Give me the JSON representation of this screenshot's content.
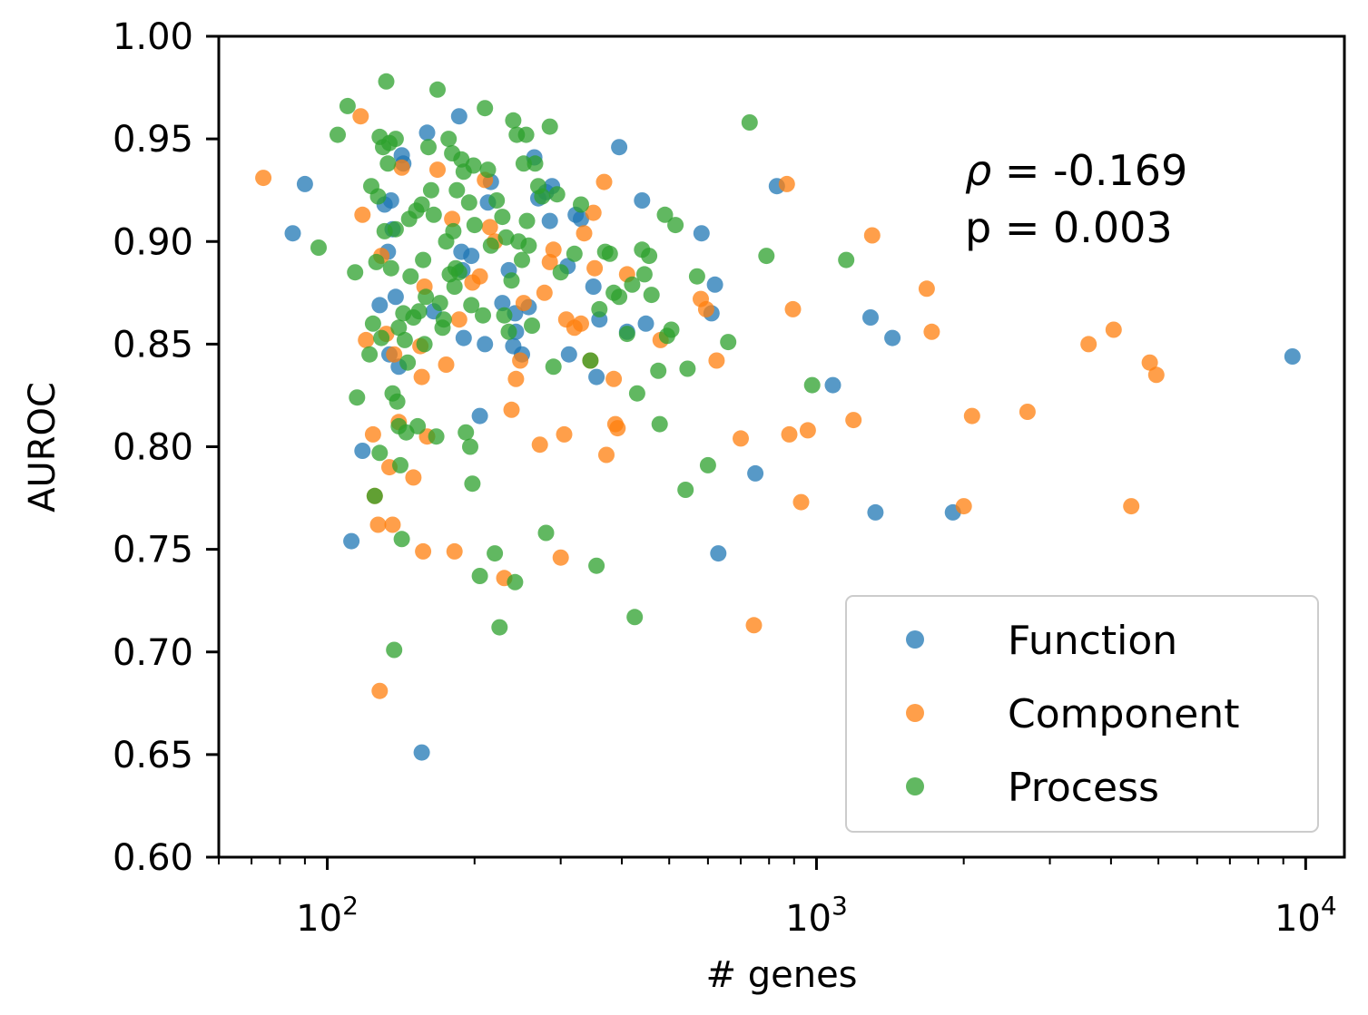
{
  "chart_data": {
    "type": "scatter",
    "xlabel": "# genes",
    "ylabel": "AUROC",
    "xscale": "log",
    "xlim": [
      60,
      12000
    ],
    "ylim": [
      0.6,
      1.0
    ],
    "yticks": [
      "0.60",
      "0.65",
      "0.70",
      "0.75",
      "0.80",
      "0.85",
      "0.90",
      "0.95",
      "1.00"
    ],
    "xticks": [
      {
        "value": 100,
        "base": "10",
        "exp": "2"
      },
      {
        "value": 1000,
        "base": "10",
        "exp": "3"
      },
      {
        "value": 10000,
        "base": "10",
        "exp": "4"
      }
    ],
    "annotation": {
      "rho_symbol": "ρ",
      "rho_text": " = -0.169",
      "p_text": "p = 0.003"
    },
    "legend_position": "lower-right",
    "series": [
      {
        "name": "Function",
        "color": "#1f77b4",
        "points": [
          [
            85,
            0.904
          ],
          [
            90,
            0.928
          ],
          [
            112,
            0.754
          ],
          [
            118,
            0.798
          ],
          [
            128,
            0.869
          ],
          [
            131,
            0.918
          ],
          [
            133,
            0.895
          ],
          [
            134,
            0.845
          ],
          [
            135,
            0.92
          ],
          [
            136,
            0.906
          ],
          [
            138,
            0.873
          ],
          [
            140,
            0.839
          ],
          [
            142,
            0.942
          ],
          [
            143,
            0.938
          ],
          [
            156,
            0.651
          ],
          [
            160,
            0.953
          ],
          [
            165,
            0.866
          ],
          [
            186,
            0.961
          ],
          [
            188,
            0.895
          ],
          [
            189,
            0.886
          ],
          [
            190,
            0.853
          ],
          [
            197,
            0.893
          ],
          [
            205,
            0.815
          ],
          [
            210,
            0.85
          ],
          [
            213,
            0.919
          ],
          [
            216,
            0.929
          ],
          [
            228,
            0.87
          ],
          [
            235,
            0.886
          ],
          [
            240,
            0.849
          ],
          [
            242,
            0.865
          ],
          [
            243,
            0.856
          ],
          [
            250,
            0.845
          ],
          [
            258,
            0.868
          ],
          [
            265,
            0.941
          ],
          [
            270,
            0.921
          ],
          [
            280,
            0.924
          ],
          [
            285,
            0.91
          ],
          [
            288,
            0.927
          ],
          [
            310,
            0.888
          ],
          [
            312,
            0.845
          ],
          [
            322,
            0.913
          ],
          [
            330,
            0.911
          ],
          [
            350,
            0.878
          ],
          [
            355,
            0.834
          ],
          [
            360,
            0.862
          ],
          [
            395,
            0.946
          ],
          [
            410,
            0.856
          ],
          [
            440,
            0.92
          ],
          [
            448,
            0.86
          ],
          [
            582,
            0.904
          ],
          [
            610,
            0.865
          ],
          [
            620,
            0.879
          ],
          [
            630,
            0.748
          ],
          [
            750,
            0.787
          ],
          [
            830,
            0.927
          ],
          [
            1080,
            0.83
          ],
          [
            1290,
            0.863
          ],
          [
            1320,
            0.768
          ],
          [
            1430,
            0.853
          ],
          [
            1900,
            0.768
          ],
          [
            9400,
            0.844
          ]
        ]
      },
      {
        "name": "Component",
        "color": "#ff7f0e",
        "points": [
          [
            74,
            0.931
          ],
          [
            117,
            0.961
          ],
          [
            118,
            0.913
          ],
          [
            120,
            0.852
          ],
          [
            124,
            0.806
          ],
          [
            125,
            0.776
          ],
          [
            127,
            0.762
          ],
          [
            128,
            0.681
          ],
          [
            129,
            0.893
          ],
          [
            132,
            0.855
          ],
          [
            134,
            0.79
          ],
          [
            136,
            0.762
          ],
          [
            137,
            0.845
          ],
          [
            140,
            0.812
          ],
          [
            142,
            0.936
          ],
          [
            150,
            0.785
          ],
          [
            155,
            0.849
          ],
          [
            156,
            0.834
          ],
          [
            157,
            0.749
          ],
          [
            158,
            0.878
          ],
          [
            160,
            0.805
          ],
          [
            168,
            0.935
          ],
          [
            175,
            0.84
          ],
          [
            180,
            0.911
          ],
          [
            182,
            0.749
          ],
          [
            186,
            0.862
          ],
          [
            198,
            0.88
          ],
          [
            205,
            0.883
          ],
          [
            210,
            0.93
          ],
          [
            215,
            0.907
          ],
          [
            220,
            0.9
          ],
          [
            230,
            0.736
          ],
          [
            238,
            0.818
          ],
          [
            243,
            0.833
          ],
          [
            248,
            0.842
          ],
          [
            252,
            0.87
          ],
          [
            272,
            0.801
          ],
          [
            278,
            0.875
          ],
          [
            285,
            0.89
          ],
          [
            290,
            0.896
          ],
          [
            300,
            0.746
          ],
          [
            305,
            0.806
          ],
          [
            308,
            0.862
          ],
          [
            320,
            0.858
          ],
          [
            330,
            0.86
          ],
          [
            335,
            0.904
          ],
          [
            345,
            0.842
          ],
          [
            350,
            0.914
          ],
          [
            352,
            0.887
          ],
          [
            368,
            0.929
          ],
          [
            372,
            0.796
          ],
          [
            385,
            0.833
          ],
          [
            388,
            0.811
          ],
          [
            392,
            0.809
          ],
          [
            410,
            0.884
          ],
          [
            480,
            0.852
          ],
          [
            580,
            0.872
          ],
          [
            595,
            0.867
          ],
          [
            625,
            0.842
          ],
          [
            700,
            0.804
          ],
          [
            745,
            0.713
          ],
          [
            870,
            0.928
          ],
          [
            880,
            0.806
          ],
          [
            895,
            0.867
          ],
          [
            930,
            0.773
          ],
          [
            960,
            0.808
          ],
          [
            1190,
            0.813
          ],
          [
            1300,
            0.903
          ],
          [
            1680,
            0.877
          ],
          [
            1720,
            0.856
          ],
          [
            2000,
            0.771
          ],
          [
            2080,
            0.815
          ],
          [
            2700,
            0.817
          ],
          [
            3600,
            0.85
          ],
          [
            4050,
            0.857
          ],
          [
            4400,
            0.771
          ],
          [
            4800,
            0.841
          ],
          [
            4950,
            0.835
          ]
        ]
      },
      {
        "name": "Process",
        "color": "#2ca02c",
        "points": [
          [
            96,
            0.897
          ],
          [
            105,
            0.952
          ],
          [
            110,
            0.966
          ],
          [
            114,
            0.885
          ],
          [
            115,
            0.824
          ],
          [
            122,
            0.845
          ],
          [
            123,
            0.927
          ],
          [
            124,
            0.86
          ],
          [
            125,
            0.776
          ],
          [
            126,
            0.89
          ],
          [
            127,
            0.922
          ],
          [
            128,
            0.951
          ],
          [
            128,
            0.797
          ],
          [
            129,
            0.853
          ],
          [
            130,
            0.946
          ],
          [
            131,
            0.905
          ],
          [
            132,
            0.978
          ],
          [
            133,
            0.938
          ],
          [
            134,
            0.948
          ],
          [
            135,
            0.887
          ],
          [
            136,
            0.826
          ],
          [
            137,
            0.701
          ],
          [
            138,
            0.95
          ],
          [
            138,
            0.906
          ],
          [
            139,
            0.822
          ],
          [
            140,
            0.858
          ],
          [
            140,
            0.81
          ],
          [
            141,
            0.791
          ],
          [
            142,
            0.755
          ],
          [
            143,
            0.865
          ],
          [
            144,
            0.852
          ],
          [
            145,
            0.807
          ],
          [
            146,
            0.841
          ],
          [
            147,
            0.911
          ],
          [
            148,
            0.883
          ],
          [
            150,
            0.863
          ],
          [
            152,
            0.915
          ],
          [
            153,
            0.81
          ],
          [
            154,
            0.866
          ],
          [
            156,
            0.918
          ],
          [
            157,
            0.891
          ],
          [
            158,
            0.85
          ],
          [
            159,
            0.873
          ],
          [
            161,
            0.946
          ],
          [
            163,
            0.925
          ],
          [
            165,
            0.913
          ],
          [
            167,
            0.805
          ],
          [
            168,
            0.974
          ],
          [
            170,
            0.87
          ],
          [
            172,
            0.858
          ],
          [
            173,
            0.862
          ],
          [
            175,
            0.9
          ],
          [
            177,
            0.95
          ],
          [
            178,
            0.884
          ],
          [
            180,
            0.943
          ],
          [
            181,
            0.905
          ],
          [
            182,
            0.878
          ],
          [
            183,
            0.887
          ],
          [
            184,
            0.925
          ],
          [
            186,
            0.885
          ],
          [
            188,
            0.94
          ],
          [
            190,
            0.934
          ],
          [
            192,
            0.807
          ],
          [
            195,
            0.919
          ],
          [
            196,
            0.8
          ],
          [
            197,
            0.869
          ],
          [
            198,
            0.782
          ],
          [
            199,
            0.937
          ],
          [
            200,
            0.908
          ],
          [
            205,
            0.737
          ],
          [
            208,
            0.864
          ],
          [
            210,
            0.965
          ],
          [
            213,
            0.935
          ],
          [
            216,
            0.898
          ],
          [
            220,
            0.748
          ],
          [
            222,
            0.92
          ],
          [
            225,
            0.712
          ],
          [
            228,
            0.912
          ],
          [
            230,
            0.864
          ],
          [
            232,
            0.902
          ],
          [
            235,
            0.856
          ],
          [
            238,
            0.881
          ],
          [
            240,
            0.959
          ],
          [
            242,
            0.734
          ],
          [
            244,
            0.952
          ],
          [
            246,
            0.9
          ],
          [
            250,
            0.891
          ],
          [
            252,
            0.938
          ],
          [
            255,
            0.952
          ],
          [
            256,
            0.91
          ],
          [
            258,
            0.898
          ],
          [
            262,
            0.859
          ],
          [
            266,
            0.938
          ],
          [
            270,
            0.927
          ],
          [
            275,
            0.922
          ],
          [
            280,
            0.758
          ],
          [
            285,
            0.956
          ],
          [
            290,
            0.839
          ],
          [
            295,
            0.923
          ],
          [
            300,
            0.885
          ],
          [
            320,
            0.894
          ],
          [
            330,
            0.918
          ],
          [
            345,
            0.842
          ],
          [
            355,
            0.742
          ],
          [
            360,
            0.867
          ],
          [
            370,
            0.895
          ],
          [
            378,
            0.894
          ],
          [
            385,
            0.875
          ],
          [
            395,
            0.873
          ],
          [
            410,
            0.855
          ],
          [
            420,
            0.879
          ],
          [
            425,
            0.717
          ],
          [
            430,
            0.826
          ],
          [
            440,
            0.896
          ],
          [
            445,
            0.884
          ],
          [
            455,
            0.893
          ],
          [
            460,
            0.874
          ],
          [
            475,
            0.837
          ],
          [
            478,
            0.811
          ],
          [
            490,
            0.913
          ],
          [
            495,
            0.854
          ],
          [
            505,
            0.857
          ],
          [
            515,
            0.908
          ],
          [
            540,
            0.779
          ],
          [
            545,
            0.838
          ],
          [
            570,
            0.883
          ],
          [
            600,
            0.791
          ],
          [
            660,
            0.851
          ],
          [
            730,
            0.958
          ],
          [
            790,
            0.893
          ],
          [
            980,
            0.83
          ],
          [
            1150,
            0.891
          ]
        ]
      }
    ]
  }
}
